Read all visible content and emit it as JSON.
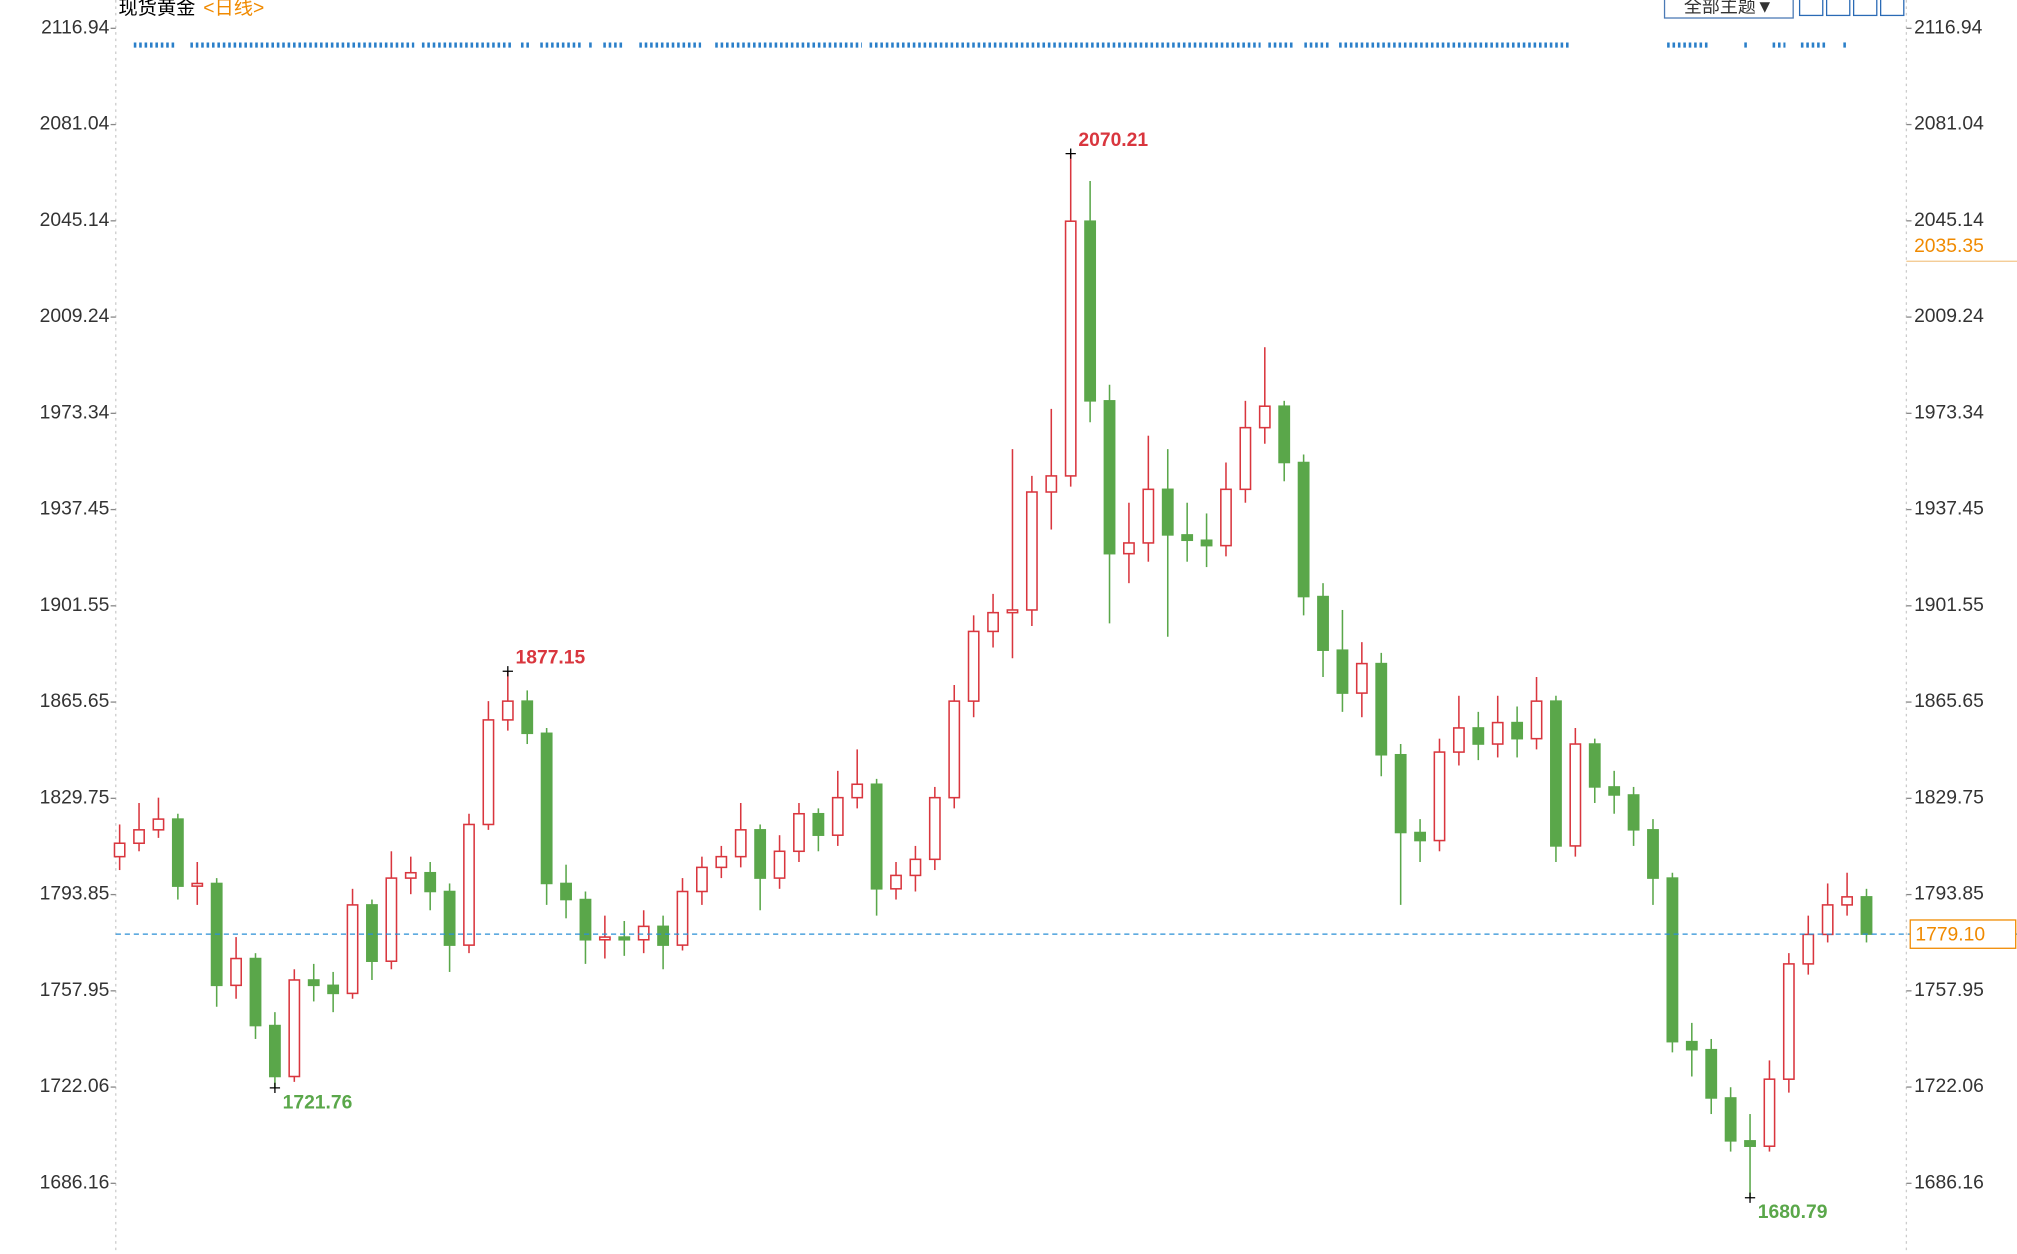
{
  "header": {
    "title": "现货黄金",
    "subtitle": "<日线>",
    "theme_button": "全部主题▼"
  },
  "chart_data": {
    "type": "candlestick",
    "open": [
      1808,
      1813,
      1818,
      1822,
      1797,
      1798,
      1760,
      1770,
      1745,
      1726,
      1762,
      1760,
      1757,
      1790,
      1769,
      1800,
      1802,
      1795,
      1775,
      1820,
      1859,
      1866,
      1854,
      1798,
      1792,
      1777,
      1778,
      1777,
      1782,
      1775,
      1795,
      1804,
      1808,
      1818,
      1800,
      1810,
      1824,
      1816,
      1830,
      1835,
      1796,
      1801,
      1807,
      1830,
      1866,
      1892,
      1899,
      1900,
      1944,
      1950,
      2045,
      1978,
      1921,
      1925,
      1945,
      1928,
      1926,
      1924,
      1945,
      1968,
      1976,
      1955,
      1905,
      1885,
      1869,
      1880,
      1846,
      1817,
      1814,
      1847,
      1856,
      1850,
      1858,
      1852,
      1866,
      1812,
      1850,
      1834,
      1831,
      1818,
      1800,
      1739,
      1736,
      1718,
      1702,
      1700,
      1725,
      1768,
      1779,
      1790,
      1793
    ],
    "high": [
      1820,
      1828,
      1830,
      1824,
      1806,
      1800,
      1778,
      1772,
      1750,
      1766,
      1768,
      1765,
      1796,
      1792,
      1810,
      1808,
      1806,
      1798,
      1824,
      1866,
      1877.15,
      1870,
      1856,
      1805,
      1795,
      1786,
      1784,
      1788,
      1786,
      1800,
      1808,
      1812,
      1828,
      1820,
      1816,
      1828,
      1826,
      1840,
      1848,
      1837,
      1806,
      1812,
      1834,
      1872,
      1898,
      1906,
      1960,
      1950,
      1975,
      2070.21,
      2060,
      1984,
      1940,
      1965,
      1960,
      1940,
      1936,
      1955,
      1978,
      1998,
      1978,
      1958,
      1910,
      1900,
      1888,
      1884,
      1850,
      1822,
      1852,
      1868,
      1862,
      1868,
      1864,
      1875,
      1868,
      1856,
      1852,
      1840,
      1834,
      1822,
      1802,
      1746,
      1740,
      1722,
      1712,
      1732,
      1772,
      1786,
      1798,
      1802,
      1796
    ],
    "low": [
      1803,
      1810,
      1815,
      1792,
      1790,
      1752,
      1755,
      1740,
      1721.76,
      1724,
      1754,
      1750,
      1755,
      1762,
      1766,
      1794,
      1788,
      1765,
      1772,
      1818,
      1855,
      1850,
      1790,
      1785,
      1768,
      1770,
      1771,
      1772,
      1766,
      1773,
      1790,
      1800,
      1804,
      1788,
      1796,
      1806,
      1810,
      1812,
      1826,
      1786,
      1792,
      1795,
      1803,
      1826,
      1860,
      1886,
      1882,
      1894,
      1930,
      1946,
      1970,
      1895,
      1910,
      1918,
      1890,
      1918,
      1916,
      1920,
      1940,
      1962,
      1948,
      1898,
      1875,
      1862,
      1860,
      1838,
      1790,
      1806,
      1810,
      1842,
      1844,
      1845,
      1845,
      1848,
      1806,
      1808,
      1828,
      1824,
      1812,
      1790,
      1735,
      1726,
      1712,
      1698,
      1680.79,
      1698,
      1720,
      1764,
      1776,
      1786,
      1776
    ],
    "close": [
      1813,
      1818,
      1822,
      1797,
      1798,
      1760,
      1770,
      1745,
      1726,
      1762,
      1760,
      1757,
      1790,
      1769,
      1800,
      1802,
      1795,
      1775,
      1820,
      1859,
      1866,
      1854,
      1798,
      1792,
      1777,
      1778,
      1777,
      1782,
      1775,
      1795,
      1804,
      1808,
      1818,
      1800,
      1810,
      1824,
      1816,
      1830,
      1835,
      1796,
      1801,
      1807,
      1830,
      1866,
      1892,
      1899,
      1900,
      1944,
      1950,
      2045,
      1978,
      1921,
      1925,
      1945,
      1928,
      1926,
      1924,
      1945,
      1968,
      1976,
      1955,
      1905,
      1885,
      1869,
      1880,
      1846,
      1817,
      1814,
      1847,
      1856,
      1850,
      1858,
      1852,
      1866,
      1812,
      1850,
      1834,
      1831,
      1818,
      1800,
      1739,
      1736,
      1718,
      1702,
      1700,
      1725,
      1768,
      1779,
      1790,
      1793,
      1779.1
    ],
    "up_color": "#d9363e",
    "down_color": "#5aa74a",
    "ylim": [
      1659.8,
      2127.5
    ],
    "yticks": [
      2116.94,
      2081.04,
      2045.14,
      2009.24,
      1973.34,
      1937.45,
      1901.55,
      1865.65,
      1829.75,
      1793.85,
      1757.95,
      1722.06,
      1686.16
    ],
    "price_line": {
      "value": 1779.1,
      "label": "1779.10"
    },
    "marker_price": 2035.35
  }
}
